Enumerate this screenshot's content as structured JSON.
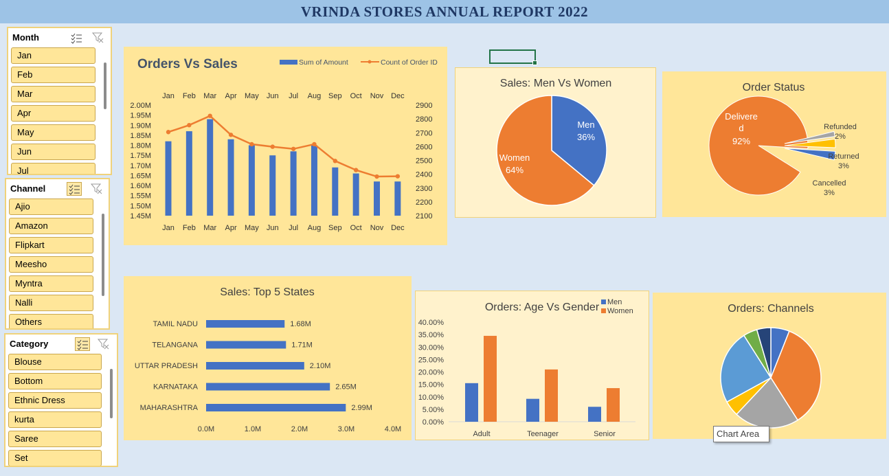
{
  "title": "VRINDA STORES ANNUAL REPORT 2022",
  "slicers": {
    "month": {
      "title": "Month",
      "items": [
        "Jan",
        "Feb",
        "Mar",
        "Apr",
        "May",
        "Jun",
        "Jul"
      ]
    },
    "channel": {
      "title": "Channel",
      "items": [
        "Ajio",
        "Amazon",
        "Flipkart",
        "Meesho",
        "Myntra",
        "Nalli",
        "Others"
      ]
    },
    "category": {
      "title": "Category",
      "items": [
        "Blouse",
        "Bottom",
        "Ethnic Dress",
        "kurta",
        "Saree",
        "Set"
      ]
    }
  },
  "colors": {
    "blue": "#4472c4",
    "orange": "#ed7d31",
    "gray": "#a5a5a5",
    "yellow": "#ffc000",
    "lightblue": "#5b9bd5",
    "green": "#70ad47",
    "navy": "#264478"
  },
  "tooltip": "Chart Area",
  "chart_data": [
    {
      "id": "orders_vs_sales",
      "type": "bar",
      "title": "Orders Vs Sales",
      "categories": [
        "Jan",
        "Feb",
        "Mar",
        "Apr",
        "May",
        "Jun",
        "Jul",
        "Aug",
        "Sep",
        "Oct",
        "Nov",
        "Dec"
      ],
      "series": [
        {
          "name": "Sum of Amount",
          "type": "bar",
          "axis": "left",
          "values": [
            1.82,
            1.87,
            1.93,
            1.83,
            1.8,
            1.75,
            1.77,
            1.8,
            1.69,
            1.66,
            1.62,
            1.62
          ]
        },
        {
          "name": "Count of Order ID",
          "type": "line",
          "axis": "right",
          "values": [
            2705,
            2755,
            2822,
            2685,
            2617,
            2599,
            2583,
            2617,
            2496,
            2430,
            2383,
            2385
          ]
        }
      ],
      "y_left": {
        "min": 1.45,
        "max": 2.0,
        "ticks": [
          "2.00M",
          "1.95M",
          "1.90M",
          "1.85M",
          "1.80M",
          "1.75M",
          "1.70M",
          "1.65M",
          "1.60M",
          "1.55M",
          "1.50M",
          "1.45M"
        ]
      },
      "y_right": {
        "min": 2100,
        "max": 2900,
        "ticks": [
          "2900",
          "2800",
          "2700",
          "2600",
          "2500",
          "2400",
          "2300",
          "2200",
          "2100"
        ]
      },
      "legend": "top-right"
    },
    {
      "id": "sales_men_women",
      "type": "pie",
      "title": "Sales: Men Vs Women",
      "slices": [
        {
          "label": "Men",
          "value": 36,
          "text": "36%"
        },
        {
          "label": "Women",
          "value": 64,
          "text": "64%"
        }
      ]
    },
    {
      "id": "order_status",
      "type": "pie",
      "title": "Order Status",
      "slices": [
        {
          "label": "Delivered",
          "value": 92,
          "text": "92%",
          "line1": "Delivere",
          "line2": "d"
        },
        {
          "label": "Cancelled",
          "value": 3,
          "text": "3%"
        },
        {
          "label": "Returned",
          "value": 3,
          "text": "3%"
        },
        {
          "label": "Refunded",
          "value": 2,
          "text": "2%"
        }
      ]
    },
    {
      "id": "top_states",
      "type": "bar",
      "orientation": "horizontal",
      "title": "Sales: Top 5 States",
      "categories": [
        "TAMIL NADU",
        "TELANGANA",
        "UTTAR PRADESH",
        "KARNATAKA",
        "MAHARASHTRA"
      ],
      "values": [
        1.68,
        1.71,
        2.1,
        2.65,
        2.99
      ],
      "labels": [
        "1.68M",
        "1.71M",
        "2.10M",
        "2.65M",
        "2.99M"
      ],
      "x_ticks": [
        "0.0M",
        "1.0M",
        "2.0M",
        "3.0M",
        "4.0M"
      ],
      "xlim": [
        0,
        4
      ]
    },
    {
      "id": "age_vs_gender",
      "type": "bar",
      "title": "Orders: Age Vs Gender",
      "categories": [
        "Adult",
        "Teenager",
        "Senior"
      ],
      "series": [
        {
          "name": "Men",
          "values": [
            15.5,
            9.2,
            6.0
          ]
        },
        {
          "name": "Women",
          "values": [
            34.5,
            21.0,
            13.5
          ]
        }
      ],
      "y_ticks": [
        "40.00%",
        "35.00%",
        "30.00%",
        "25.00%",
        "20.00%",
        "15.00%",
        "10.00%",
        "5.00%",
        "0.00%"
      ],
      "ylim": [
        0,
        40
      ],
      "legend": "top-right"
    },
    {
      "id": "orders_channels",
      "type": "pie",
      "title": "Orders: Channels",
      "slices": [
        {
          "value": 6
        },
        {
          "value": 35
        },
        {
          "value": 21
        },
        {
          "value": 5
        },
        {
          "value": 24
        },
        {
          "value": 4.5
        },
        {
          "value": 4.5
        }
      ]
    }
  ]
}
